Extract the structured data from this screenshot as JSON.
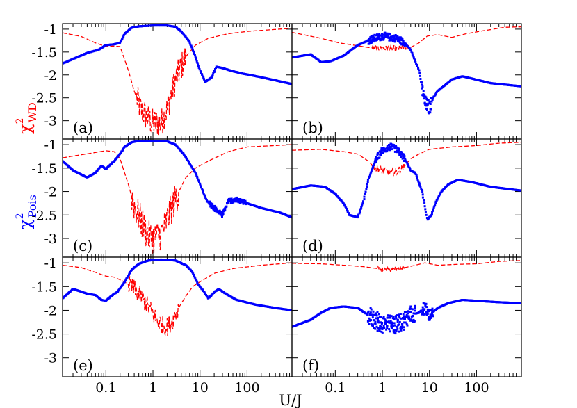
{
  "chart_data": {
    "type": "line",
    "title": "",
    "xlabel": "U/J",
    "ylabel_red": {
      "main": "χ",
      "sup": "2",
      "sub": "WD"
    },
    "ylabel_blue": {
      "main": "χ",
      "sup": "2",
      "sub": "Pois"
    },
    "x_scale": "log",
    "xlim": [
      0.012,
      900
    ],
    "ylim": [
      -3.4,
      -0.88
    ],
    "x_ticks": [
      {
        "value": 0.1,
        "label": "0.1"
      },
      {
        "value": 1,
        "label": "1"
      },
      {
        "value": 10,
        "label": "10"
      },
      {
        "value": 100,
        "label": "100"
      }
    ],
    "y_ticks": [
      {
        "value": -1,
        "label": "-1"
      },
      {
        "value": -1.5,
        "label": "-1.5"
      },
      {
        "value": -2,
        "label": "-2"
      },
      {
        "value": -2.5,
        "label": "-2.5"
      },
      {
        "value": -3,
        "label": "-3"
      }
    ],
    "colors": {
      "wd": "#ff0000",
      "pois": "#0000ff"
    },
    "panels": [
      {
        "label": "(a)",
        "wd": [
          [
            0.012,
            -1.08
          ],
          [
            0.03,
            -1.16
          ],
          [
            0.06,
            -1.3
          ],
          [
            0.1,
            -1.38
          ],
          [
            0.14,
            -1.37
          ],
          [
            0.2,
            -1.38
          ],
          [
            0.3,
            -1.9
          ],
          [
            0.4,
            -2.35
          ],
          [
            0.55,
            -2.75
          ],
          [
            0.7,
            -2.9
          ],
          [
            1.0,
            -3.05
          ],
          [
            1.5,
            -3.05
          ],
          [
            2.0,
            -2.75
          ],
          [
            3.0,
            -2.1
          ],
          [
            5.0,
            -1.6
          ],
          [
            8.0,
            -1.35
          ],
          [
            15,
            -1.2
          ],
          [
            40,
            -1.1
          ],
          [
            100,
            -1.05
          ],
          [
            900,
            -0.98
          ]
        ],
        "pois": [
          [
            0.012,
            -1.75
          ],
          [
            0.04,
            -1.52
          ],
          [
            0.07,
            -1.45
          ],
          [
            0.1,
            -1.35
          ],
          [
            0.15,
            -1.33
          ],
          [
            0.2,
            -1.3
          ],
          [
            0.25,
            -1.1
          ],
          [
            0.35,
            -0.97
          ],
          [
            0.5,
            -0.94
          ],
          [
            1.0,
            -0.92
          ],
          [
            2.0,
            -0.92
          ],
          [
            3.0,
            -0.95
          ],
          [
            4.0,
            -1.05
          ],
          [
            6.0,
            -1.28
          ],
          [
            8.0,
            -1.6
          ],
          [
            10,
            -1.9
          ],
          [
            13,
            -2.15
          ],
          [
            18,
            -2.05
          ],
          [
            22,
            -1.82
          ],
          [
            30,
            -1.85
          ],
          [
            50,
            -1.92
          ],
          [
            80,
            -1.97
          ],
          [
            200,
            -2.05
          ],
          [
            900,
            -2.2
          ]
        ],
        "wd_noise": [
          [
            0.45,
            5.0,
            0.32
          ]
        ],
        "pois_noise": []
      },
      {
        "label": "(b)",
        "wd": [
          [
            0.012,
            -1.07
          ],
          [
            0.05,
            -1.2
          ],
          [
            0.12,
            -1.3
          ],
          [
            0.25,
            -1.35
          ],
          [
            0.5,
            -1.4
          ],
          [
            1.0,
            -1.42
          ],
          [
            2.0,
            -1.42
          ],
          [
            4.0,
            -1.4
          ],
          [
            6.0,
            -1.3
          ],
          [
            9.0,
            -1.15
          ],
          [
            15,
            -1.12
          ],
          [
            30,
            -1.18
          ],
          [
            60,
            -1.1
          ],
          [
            150,
            -1.03
          ],
          [
            400,
            -0.96
          ],
          [
            900,
            -0.95
          ]
        ],
        "pois": [
          [
            0.012,
            -1.62
          ],
          [
            0.03,
            -1.55
          ],
          [
            0.05,
            -1.72
          ],
          [
            0.08,
            -1.7
          ],
          [
            0.15,
            -1.58
          ],
          [
            0.3,
            -1.35
          ],
          [
            0.5,
            -1.25
          ],
          [
            1.0,
            -1.15
          ],
          [
            2.0,
            -1.2
          ],
          [
            3.0,
            -1.3
          ],
          [
            4.0,
            -1.45
          ],
          [
            6.0,
            -1.9
          ],
          [
            8.0,
            -2.6
          ],
          [
            10,
            -2.72
          ],
          [
            12,
            -2.5
          ],
          [
            15,
            -2.35
          ],
          [
            20,
            -2.25
          ],
          [
            30,
            -2.1
          ],
          [
            50,
            -2.03
          ],
          [
            80,
            -2.08
          ],
          [
            200,
            -2.18
          ],
          [
            900,
            -2.25
          ]
        ],
        "wd_noise": [
          [
            0.6,
            4.0,
            0.06
          ]
        ],
        "pois_noise": [
          [
            0.5,
            3.0,
            0.08
          ],
          [
            7.0,
            11.0,
            0.15
          ]
        ]
      },
      {
        "label": "(c)",
        "wd": [
          [
            0.012,
            -1.28
          ],
          [
            0.05,
            -1.18
          ],
          [
            0.1,
            -1.13
          ],
          [
            0.15,
            -1.15
          ],
          [
            0.2,
            -1.3
          ],
          [
            0.3,
            -1.85
          ],
          [
            0.4,
            -2.3
          ],
          [
            0.6,
            -2.7
          ],
          [
            0.8,
            -2.95
          ],
          [
            1.0,
            -3.0
          ],
          [
            1.5,
            -2.9
          ],
          [
            2.0,
            -2.6
          ],
          [
            3.0,
            -2.15
          ],
          [
            5.0,
            -1.7
          ],
          [
            8.0,
            -1.5
          ],
          [
            15,
            -1.35
          ],
          [
            40,
            -1.15
          ],
          [
            100,
            -1.05
          ],
          [
            900,
            -1.0
          ]
        ],
        "pois": [
          [
            0.012,
            -1.35
          ],
          [
            0.02,
            -1.55
          ],
          [
            0.04,
            -1.7
          ],
          [
            0.06,
            -1.6
          ],
          [
            0.08,
            -1.45
          ],
          [
            0.1,
            -1.52
          ],
          [
            0.15,
            -1.35
          ],
          [
            0.2,
            -1.2
          ],
          [
            0.25,
            -1.05
          ],
          [
            0.35,
            -0.95
          ],
          [
            0.5,
            -0.92
          ],
          [
            1.0,
            -0.92
          ],
          [
            2.0,
            -0.93
          ],
          [
            3.0,
            -1.0
          ],
          [
            4.5,
            -1.2
          ],
          [
            6.0,
            -1.4
          ],
          [
            8.0,
            -1.6
          ],
          [
            10,
            -1.85
          ],
          [
            14,
            -2.2
          ],
          [
            20,
            -2.35
          ],
          [
            30,
            -2.5
          ],
          [
            40,
            -2.2
          ],
          [
            60,
            -2.18
          ],
          [
            100,
            -2.25
          ],
          [
            200,
            -2.35
          ],
          [
            500,
            -2.45
          ],
          [
            900,
            -2.55
          ]
        ],
        "wd_noise": [
          [
            0.35,
            3.5,
            0.35
          ]
        ],
        "pois_noise": [
          [
            15,
            100,
            0.05
          ]
        ]
      },
      {
        "label": "(d)",
        "wd": [
          [
            0.012,
            -1.12
          ],
          [
            0.05,
            -1.1
          ],
          [
            0.15,
            -1.15
          ],
          [
            0.3,
            -1.2
          ],
          [
            0.5,
            -1.35
          ],
          [
            0.7,
            -1.5
          ],
          [
            1.0,
            -1.55
          ],
          [
            1.5,
            -1.6
          ],
          [
            2.0,
            -1.58
          ],
          [
            3.0,
            -1.45
          ],
          [
            4.0,
            -1.3
          ],
          [
            6.0,
            -1.2
          ],
          [
            10,
            -1.1
          ],
          [
            30,
            -1.05
          ],
          [
            100,
            -1.02
          ],
          [
            300,
            -0.97
          ],
          [
            900,
            -0.95
          ]
        ],
        "pois": [
          [
            0.012,
            -1.95
          ],
          [
            0.03,
            -1.87
          ],
          [
            0.06,
            -1.9
          ],
          [
            0.1,
            -2.05
          ],
          [
            0.15,
            -2.25
          ],
          [
            0.2,
            -2.5
          ],
          [
            0.3,
            -2.55
          ],
          [
            0.4,
            -2.2
          ],
          [
            0.5,
            -1.75
          ],
          [
            0.7,
            -1.35
          ],
          [
            1.0,
            -1.12
          ],
          [
            1.5,
            -1.05
          ],
          [
            2.0,
            -1.1
          ],
          [
            3.0,
            -1.3
          ],
          [
            4.0,
            -1.55
          ],
          [
            5.0,
            -1.6
          ],
          [
            7.0,
            -2.0
          ],
          [
            9.0,
            -2.6
          ],
          [
            11,
            -2.5
          ],
          [
            14,
            -2.2
          ],
          [
            18,
            -2.0
          ],
          [
            25,
            -1.85
          ],
          [
            40,
            -1.75
          ],
          [
            80,
            -1.8
          ],
          [
            200,
            -1.9
          ],
          [
            900,
            -1.98
          ]
        ],
        "wd_noise": [
          [
            0.6,
            3.0,
            0.08
          ]
        ],
        "pois_noise": [
          [
            0.7,
            3.0,
            0.07
          ]
        ]
      },
      {
        "label": "(e)",
        "wd": [
          [
            0.012,
            -1.05
          ],
          [
            0.03,
            -1.1
          ],
          [
            0.06,
            -1.2
          ],
          [
            0.1,
            -1.28
          ],
          [
            0.15,
            -1.3
          ],
          [
            0.25,
            -1.4
          ],
          [
            0.4,
            -1.55
          ],
          [
            0.6,
            -1.75
          ],
          [
            0.9,
            -2.0
          ],
          [
            1.2,
            -2.2
          ],
          [
            1.5,
            -2.3
          ],
          [
            2.0,
            -2.35
          ],
          [
            2.5,
            -2.25
          ],
          [
            3.5,
            -1.95
          ],
          [
            5.0,
            -1.7
          ],
          [
            7.0,
            -1.5
          ],
          [
            10,
            -1.4
          ],
          [
            20,
            -1.22
          ],
          [
            50,
            -1.12
          ],
          [
            200,
            -1.05
          ],
          [
            900,
            -1.0
          ]
        ],
        "pois": [
          [
            0.012,
            -1.75
          ],
          [
            0.02,
            -1.55
          ],
          [
            0.04,
            -1.65
          ],
          [
            0.06,
            -1.68
          ],
          [
            0.08,
            -1.78
          ],
          [
            0.1,
            -1.8
          ],
          [
            0.13,
            -1.7
          ],
          [
            0.18,
            -1.6
          ],
          [
            0.25,
            -1.4
          ],
          [
            0.35,
            -1.15
          ],
          [
            0.5,
            -1.02
          ],
          [
            0.8,
            -0.95
          ],
          [
            1.5,
            -0.93
          ],
          [
            3.0,
            -0.95
          ],
          [
            5.0,
            -1.05
          ],
          [
            7.0,
            -1.2
          ],
          [
            9.0,
            -1.45
          ],
          [
            12,
            -1.6
          ],
          [
            15,
            -1.75
          ],
          [
            20,
            -1.62
          ],
          [
            25,
            -1.55
          ],
          [
            35,
            -1.65
          ],
          [
            60,
            -1.78
          ],
          [
            150,
            -1.88
          ],
          [
            400,
            -1.95
          ],
          [
            900,
            -2.0
          ]
        ],
        "wd_noise": [
          [
            0.3,
            3.5,
            0.2
          ]
        ],
        "pois_noise": []
      },
      {
        "label": "(f)",
        "wd": [
          [
            0.012,
            -1.01
          ],
          [
            0.05,
            -1.02
          ],
          [
            0.15,
            -1.05
          ],
          [
            0.4,
            -1.08
          ],
          [
            0.8,
            -1.12
          ],
          [
            1.5,
            -1.14
          ],
          [
            3.0,
            -1.1
          ],
          [
            5.0,
            -1.05
          ],
          [
            8.0,
            -1.0
          ],
          [
            15,
            -1.05
          ],
          [
            40,
            -1.03
          ],
          [
            100,
            -1.02
          ],
          [
            300,
            -0.97
          ],
          [
            900,
            -0.95
          ]
        ],
        "pois": [
          [
            0.012,
            -2.35
          ],
          [
            0.03,
            -2.2
          ],
          [
            0.05,
            -2.05
          ],
          [
            0.08,
            -1.95
          ],
          [
            0.15,
            -1.92
          ],
          [
            0.3,
            -1.95
          ],
          [
            0.5,
            -2.1
          ],
          [
            0.8,
            -2.25
          ],
          [
            1.2,
            -2.3
          ],
          [
            2.0,
            -2.3
          ],
          [
            3.0,
            -2.2
          ],
          [
            4.0,
            -2.1
          ],
          [
            6.0,
            -2.05
          ],
          [
            8.0,
            -1.95
          ],
          [
            10,
            -2.1
          ],
          [
            15,
            -1.95
          ],
          [
            25,
            -1.85
          ],
          [
            50,
            -1.78
          ],
          [
            100,
            -1.8
          ],
          [
            300,
            -1.83
          ],
          [
            900,
            -1.85
          ]
        ],
        "wd_noise": [
          [
            0.8,
            3.0,
            0.04
          ]
        ],
        "pois_noise": [
          [
            0.5,
            5.0,
            0.2
          ],
          [
            7.0,
            12.0,
            0.12
          ]
        ]
      }
    ]
  }
}
